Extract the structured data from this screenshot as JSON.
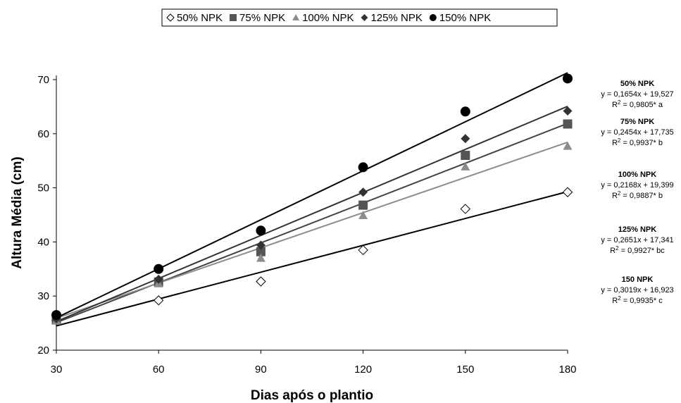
{
  "chart_data": {
    "type": "scatter",
    "xlabel": "Dias após o plantio",
    "ylabel": "Altura Média (cm)",
    "xlim": [
      30,
      180
    ],
    "ylim": [
      20,
      70
    ],
    "x_ticks": [
      30,
      60,
      90,
      120,
      150,
      180
    ],
    "y_ticks": [
      20,
      30,
      40,
      50,
      60,
      70
    ],
    "grid": false,
    "legend_position": "top",
    "x": [
      30,
      60,
      90,
      120,
      150,
      180
    ],
    "series": [
      {
        "name": "50% NPK",
        "marker": "diamond-open",
        "color": "#000000",
        "line_color": "#000000",
        "values": [
          25.5,
          29.2,
          32.7,
          38.5,
          46.1,
          49.2
        ],
        "trend": {
          "slope": 0.1654,
          "intercept": 19.527
        },
        "label": "50% NPK",
        "equation": "y = 0,1654x + 19,527",
        "r2_value": "= 0,9805* a"
      },
      {
        "name": "75% NPK",
        "marker": "square",
        "color": "#555555",
        "line_color": "#444444",
        "values": [
          25.6,
          32.6,
          38.2,
          46.8,
          56.0,
          61.8
        ],
        "trend": {
          "slope": 0.2454,
          "intercept": 17.735
        },
        "label": "75% NPK",
        "equation": "y = 0,2454x + 17,735",
        "r2_value": "= 0,9937* b"
      },
      {
        "name": "100% NPK",
        "marker": "triangle",
        "color": "#8c8c8c",
        "line_color": "#8c8c8c",
        "values": [
          25.4,
          32.3,
          37.0,
          44.9,
          53.9,
          57.7
        ],
        "trend": {
          "slope": 0.2168,
          "intercept": 19.399
        },
        "label": "100% NPK",
        "equation": "y = 0,2168x + 19,399",
        "r2_value": "= 0,9887* b"
      },
      {
        "name": "125% NPK",
        "marker": "diamond",
        "color": "#333333",
        "line_color": "#333333",
        "values": [
          25.8,
          33.1,
          39.4,
          49.2,
          59.1,
          64.2
        ],
        "trend": {
          "slope": 0.2651,
          "intercept": 17.341
        },
        "label": "125% NPK",
        "equation": "y = 0,2651x + 17,341",
        "r2_value": "= 0,9927* bc"
      },
      {
        "name": "150% NPK",
        "marker": "circle",
        "color": "#000000",
        "line_color": "#000000",
        "values": [
          26.5,
          35.0,
          42.1,
          53.8,
          64.1,
          70.2
        ],
        "trend": {
          "slope": 0.3019,
          "intercept": 16.923
        },
        "label": "150 NPK",
        "equation": "y = 0,3019x + 16,923",
        "r2_value": "= 0,9935* c"
      }
    ],
    "r2_symbol": "R",
    "r2_exponent": "2"
  }
}
